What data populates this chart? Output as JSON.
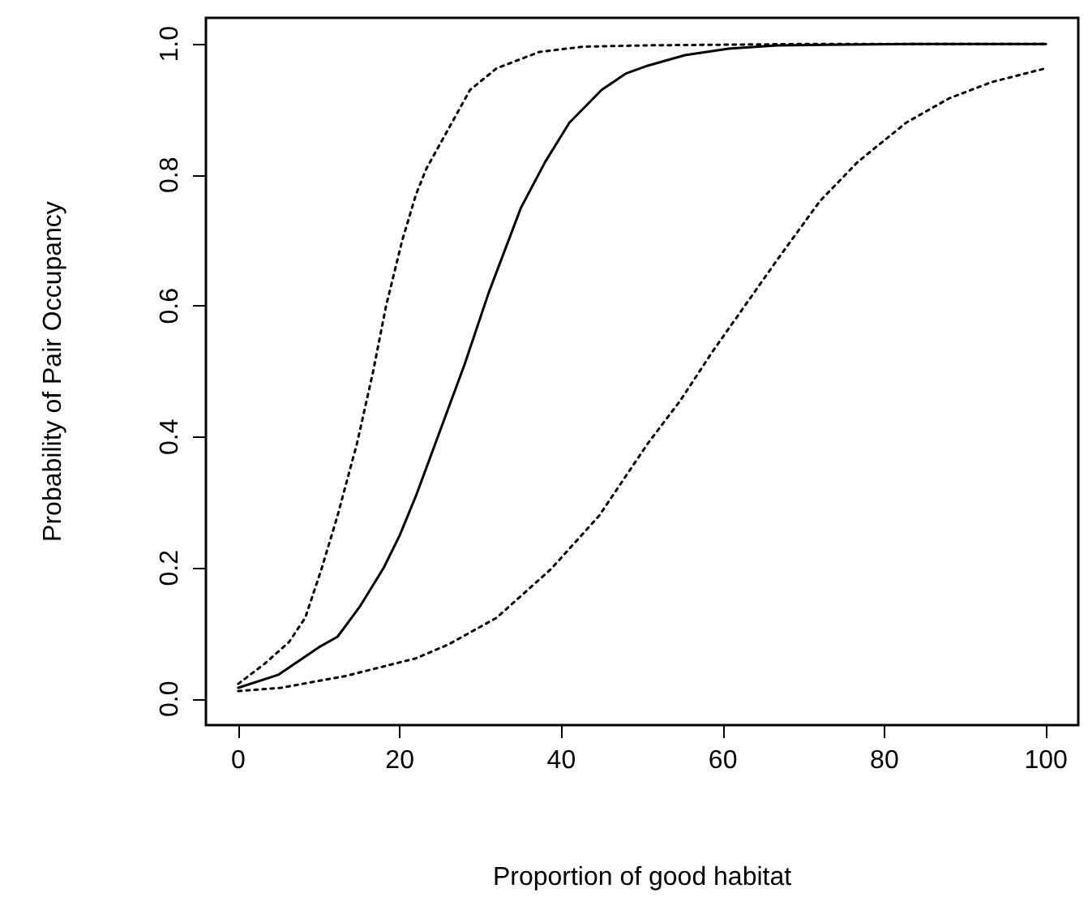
{
  "chart_data": {
    "type": "line",
    "xlabel": "Proportion of good habitat",
    "ylabel": "Probability of Pair Occupancy",
    "xlim": [
      -4,
      104
    ],
    "ylim": [
      -0.04,
      1.04
    ],
    "xticks": [
      0,
      20,
      40,
      60,
      80,
      100
    ],
    "yticks": [
      {
        "value": 0,
        "label": "0.0"
      },
      {
        "value": 0.2,
        "label": "0.2"
      },
      {
        "value": 0.4,
        "label": "0.4"
      },
      {
        "value": 0.6,
        "label": "0.6"
      },
      {
        "value": 0.8,
        "label": "0.8"
      },
      {
        "value": 1,
        "label": "1.0"
      }
    ],
    "marker": "none",
    "series": [
      {
        "color": "#000000",
        "line_style": "solid",
        "x": [
          0,
          5,
          10,
          12.3,
          15,
          18,
          20,
          22,
          25,
          28,
          31,
          35,
          38,
          41,
          45,
          48,
          50.7,
          55.3,
          60.7,
          66.7,
          83.3,
          100
        ],
        "values": [
          0.017,
          0.037,
          0.079,
          0.095,
          0.14,
          0.2,
          0.25,
          0.31,
          0.41,
          0.51,
          0.62,
          0.75,
          0.82,
          0.88,
          0.93,
          0.955,
          0.967,
          0.983,
          0.993,
          0.998,
          1,
          1
        ]
      },
      {
        "color": "#000000",
        "line_style": "dotted",
        "x": [
          0,
          3.3,
          6.3,
          8.3,
          10.3,
          12.3,
          14.7,
          16.7,
          18.3,
          20.3,
          22,
          23.3,
          26,
          28.7,
          32,
          37.3,
          42.7,
          50.7,
          70,
          100
        ],
        "values": [
          0.023,
          0.054,
          0.087,
          0.124,
          0.198,
          0.28,
          0.39,
          0.5,
          0.6,
          0.7,
          0.77,
          0.81,
          0.87,
          0.93,
          0.963,
          0.988,
          0.996,
          0.998,
          1,
          1
        ]
      },
      {
        "color": "#000000",
        "line_style": "dotted",
        "x": [
          0,
          5.3,
          13.3,
          22,
          26,
          32,
          38.7,
          44.7,
          50.7,
          54.7,
          58.7,
          62.7,
          66.7,
          72,
          76.7,
          82.7,
          88,
          93.3,
          100
        ],
        "values": [
          0.012,
          0.017,
          0.035,
          0.062,
          0.083,
          0.124,
          0.198,
          0.28,
          0.39,
          0.455,
          0.53,
          0.6,
          0.67,
          0.76,
          0.82,
          0.88,
          0.917,
          0.942,
          0.963
        ]
      }
    ]
  }
}
